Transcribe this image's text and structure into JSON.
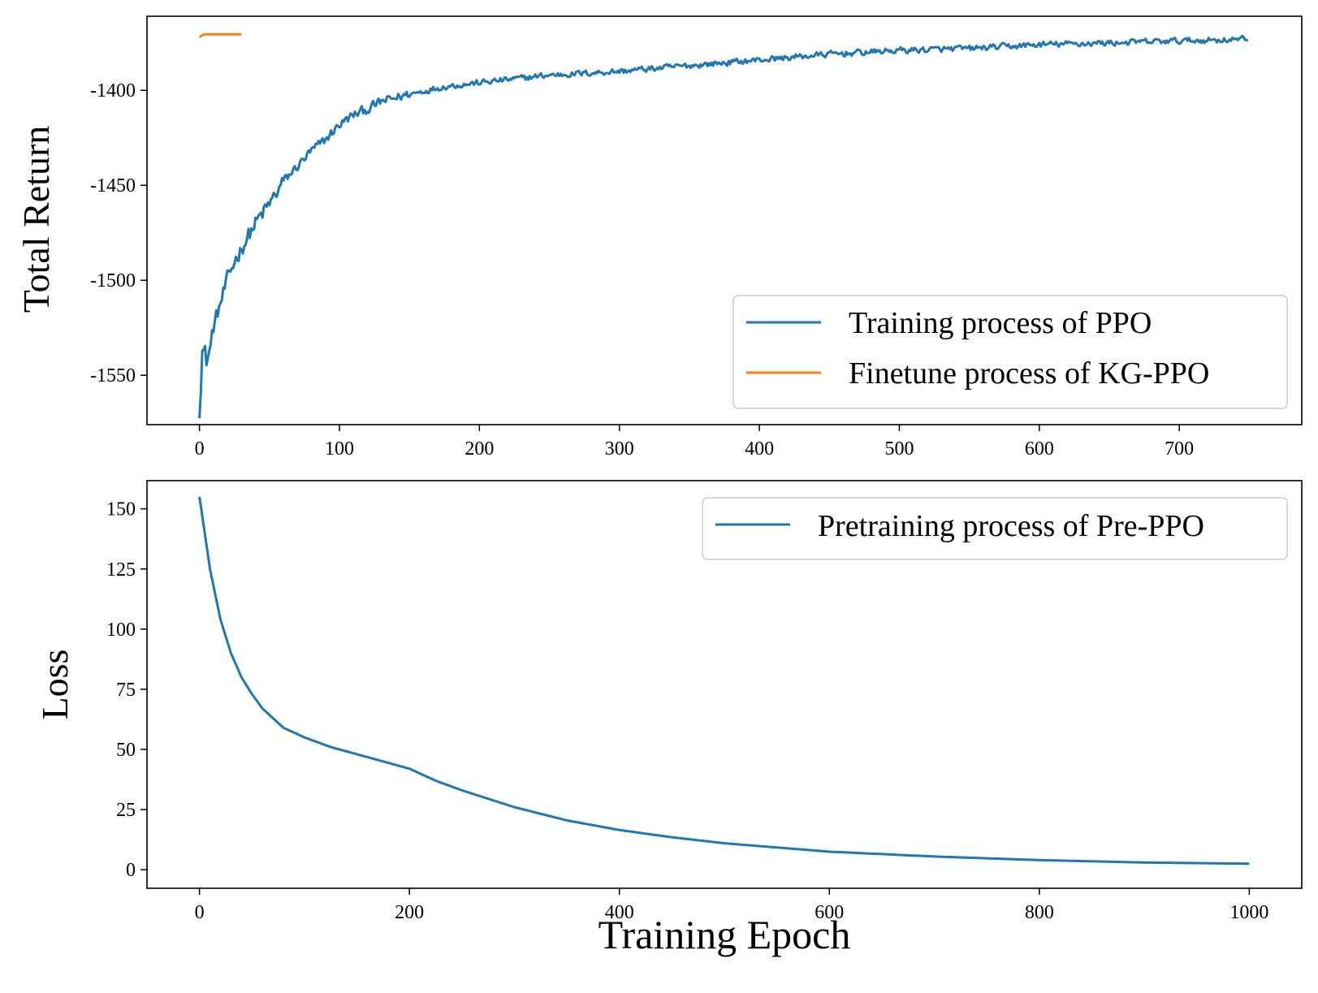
{
  "chart_data": [
    {
      "type": "line",
      "title": "",
      "xlabel": "",
      "ylabel": "Total Return",
      "xlim": [
        -37.5,
        787.5
      ],
      "ylim": [
        -1576,
        -1361
      ],
      "xticks": [
        0,
        100,
        200,
        300,
        400,
        500,
        600,
        700
      ],
      "yticks": [
        -1550,
        -1500,
        -1450,
        -1400
      ],
      "grid": false,
      "legend_position": "lower-right",
      "series": [
        {
          "name": "Training process of PPO",
          "color": "#1f77b4",
          "noisy": true,
          "x": [
            0,
            2,
            5,
            8,
            10,
            15,
            20,
            25,
            30,
            40,
            50,
            60,
            70,
            80,
            90,
            100,
            110,
            120,
            130,
            150,
            175,
            200,
            250,
            300,
            350,
            400,
            450,
            500,
            550,
            600,
            650,
            700,
            749
          ],
          "y": [
            -1567,
            -1535,
            -1542,
            -1535,
            -1525,
            -1512,
            -1500,
            -1490,
            -1483,
            -1470,
            -1460,
            -1448,
            -1440,
            -1432,
            -1426,
            -1418,
            -1413,
            -1410,
            -1406,
            -1402,
            -1398,
            -1396,
            -1392,
            -1390,
            -1387,
            -1384,
            -1381,
            -1379,
            -1378,
            -1376,
            -1375,
            -1374,
            -1373
          ]
        },
        {
          "name": "Finetune process of KG-PPO",
          "color": "#ff7f0e",
          "noisy": false,
          "x": [
            0,
            1,
            2,
            4,
            30
          ],
          "y": [
            -1372,
            -1371.5,
            -1371,
            -1370.5,
            -1370.5
          ]
        }
      ]
    },
    {
      "type": "line",
      "title": "",
      "xlabel": "Training Epoch",
      "ylabel": "Loss",
      "xlim": [
        -50,
        1050
      ],
      "ylim": [
        -7.7,
        161.7
      ],
      "xticks": [
        0,
        200,
        400,
        600,
        800,
        1000
      ],
      "yticks": [
        0,
        25,
        50,
        75,
        100,
        125,
        150
      ],
      "grid": false,
      "legend_position": "upper-right",
      "series": [
        {
          "name": "Pretraining process of Pre-PPO",
          "color": "#1f77b4",
          "noisy": false,
          "x": [
            0,
            10,
            20,
            30,
            40,
            50,
            60,
            80,
            100,
            125,
            150,
            175,
            200,
            225,
            250,
            300,
            350,
            400,
            450,
            500,
            600,
            700,
            800,
            900,
            1000
          ],
          "y": [
            155,
            125,
            104,
            90,
            80,
            73,
            67,
            59,
            55,
            51,
            48,
            45,
            42,
            37,
            33,
            26,
            20.5,
            16.5,
            13.5,
            11,
            7.5,
            5.5,
            4,
            3,
            2.5
          ]
        }
      ]
    }
  ]
}
